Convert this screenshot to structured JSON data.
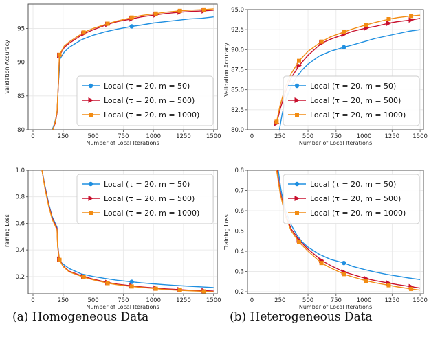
{
  "captions": {
    "a": "(a) Homogeneous Data",
    "b": "(b) Heterogeneous Data"
  },
  "colors": {
    "m50": "#1f8fe0",
    "m500": "#c8102e",
    "m1000": "#f28c13",
    "grid": "#e6e6e6",
    "legend_border": "#cccccc"
  },
  "chart_data": [
    {
      "type": "line",
      "panel": "a-top",
      "xlabel": "Number of Local Iterations",
      "ylabel": "Validation Accuracy",
      "xlim": [
        -40,
        1530
      ],
      "ylim": [
        80,
        98.6
      ],
      "xticks": [
        0,
        250,
        500,
        750,
        1000,
        1250,
        1500
      ],
      "yticks": [
        80,
        85,
        90,
        95
      ],
      "grid": true,
      "legend": "lower-right",
      "series": [
        {
          "name": "Local (τ = 20, m = 50)",
          "color_key": "m50",
          "marker": "circle",
          "x": [
            160,
            180,
            200,
            210,
            225,
            260,
            300,
            400,
            500,
            600,
            700,
            820,
            900,
            1000,
            1100,
            1200,
            1300,
            1400,
            1500
          ],
          "y": [
            80,
            81.0,
            82.5,
            86.5,
            90.5,
            91.5,
            92.2,
            93.3,
            94.0,
            94.5,
            94.9,
            95.3,
            95.5,
            95.8,
            96.0,
            96.2,
            96.4,
            96.5,
            96.7
          ],
          "markers_x": [
            820
          ]
        },
        {
          "name": "Local (τ = 20, m = 500)",
          "color_key": "m500",
          "marker": "triangle-right",
          "x": [
            165,
            185,
            200,
            212,
            220,
            260,
            300,
            420,
            500,
            620,
            700,
            820,
            900,
            1020,
            1100,
            1220,
            1300,
            1420,
            1500
          ],
          "y": [
            80,
            81.0,
            82.5,
            87.0,
            91.0,
            92.2,
            92.8,
            94.2,
            94.8,
            95.6,
            96.0,
            96.4,
            96.7,
            97.0,
            97.2,
            97.4,
            97.5,
            97.6,
            97.7
          ],
          "markers_x": [
            220,
            420,
            620,
            820,
            1020,
            1220,
            1420
          ]
        },
        {
          "name": "Local (τ = 20, m = 1000)",
          "color_key": "m1000",
          "marker": "square",
          "x": [
            165,
            185,
            200,
            212,
            220,
            260,
            300,
            420,
            500,
            620,
            700,
            820,
            900,
            1020,
            1100,
            1220,
            1300,
            1420,
            1500
          ],
          "y": [
            80,
            81.2,
            82.7,
            87.3,
            91.1,
            92.4,
            93.0,
            94.4,
            95.0,
            95.7,
            96.1,
            96.6,
            96.9,
            97.2,
            97.4,
            97.6,
            97.7,
            97.8,
            97.9
          ],
          "markers_x": [
            220,
            420,
            620,
            820,
            1020,
            1220,
            1420
          ]
        }
      ]
    },
    {
      "type": "line",
      "panel": "b-top",
      "xlabel": "Number of Local Iterations",
      "ylabel": "Validation Accuracy",
      "xlim": [
        -40,
        1530
      ],
      "ylim": [
        80,
        95
      ],
      "xticks": [
        0,
        250,
        500,
        750,
        1000,
        1250,
        1500
      ],
      "yticks": [
        80.0,
        82.5,
        85.0,
        87.5,
        90.0,
        92.5,
        95.0
      ],
      "grid": true,
      "legend": "lower-right",
      "series": [
        {
          "name": "Local (τ = 20, m = 50)",
          "color_key": "m50",
          "marker": "circle",
          "x": [
            245,
            270,
            300,
            350,
            400,
            450,
            500,
            600,
            700,
            820,
            900,
            1000,
            1100,
            1200,
            1300,
            1400,
            1500
          ],
          "y": [
            80,
            82.0,
            83.7,
            85.4,
            86.6,
            87.5,
            88.2,
            89.2,
            89.8,
            90.3,
            90.6,
            91.0,
            91.4,
            91.7,
            92.0,
            92.3,
            92.5
          ],
          "markers_x": [
            820
          ]
        },
        {
          "name": "Local (τ = 20, m = 500)",
          "color_key": "m500",
          "marker": "triangle-right",
          "x": [
            220,
            250,
            300,
            350,
            420,
            500,
            620,
            700,
            820,
            900,
            1020,
            1100,
            1220,
            1300,
            1420,
            1500
          ],
          "y": [
            80.8,
            82.5,
            84.8,
            86.5,
            88.0,
            89.3,
            90.8,
            91.3,
            91.9,
            92.3,
            92.7,
            92.9,
            93.3,
            93.5,
            93.7,
            93.9
          ],
          "markers_x": [
            220,
            420,
            620,
            820,
            1020,
            1220,
            1420
          ]
        },
        {
          "name": "Local (τ = 20, m = 1000)",
          "color_key": "m1000",
          "marker": "square",
          "x": [
            220,
            250,
            300,
            350,
            420,
            500,
            620,
            700,
            820,
            900,
            1020,
            1100,
            1220,
            1300,
            1420,
            1500
          ],
          "y": [
            81.0,
            83.0,
            85.4,
            87.0,
            88.6,
            89.8,
            91.0,
            91.6,
            92.2,
            92.6,
            93.1,
            93.4,
            93.8,
            94.0,
            94.2,
            94.3
          ],
          "markers_x": [
            220,
            420,
            620,
            820,
            1020,
            1220,
            1420
          ]
        }
      ]
    },
    {
      "type": "line",
      "panel": "a-bottom",
      "xlabel": "Number of Local Iterations",
      "ylabel": "Training Loss",
      "xlim": [
        -40,
        1530
      ],
      "ylim": [
        0.07,
        1.0
      ],
      "xticks": [
        0,
        250,
        500,
        750,
        1000,
        1250,
        1500
      ],
      "yticks": [
        0.2,
        0.4,
        0.6,
        0.8,
        1.0
      ],
      "grid": true,
      "legend": "upper-right",
      "series": [
        {
          "name": "Local (τ = 20, m = 50)",
          "color_key": "m50",
          "marker": "circle",
          "x": [
            75,
            100,
            130,
            160,
            200,
            205,
            215,
            240,
            300,
            400,
            500,
            600,
            700,
            820,
            900,
            1000,
            1100,
            1200,
            1300,
            1400,
            1500
          ],
          "y": [
            1.0,
            0.88,
            0.75,
            0.65,
            0.57,
            0.45,
            0.35,
            0.3,
            0.26,
            0.22,
            0.2,
            0.185,
            0.172,
            0.16,
            0.152,
            0.145,
            0.138,
            0.132,
            0.127,
            0.122,
            0.117
          ],
          "markers_x": [
            820
          ]
        },
        {
          "name": "Local (τ = 20, m = 500)",
          "color_key": "m500",
          "marker": "triangle-right",
          "x": [
            75,
            100,
            130,
            160,
            200,
            205,
            220,
            250,
            300,
            420,
            500,
            620,
            700,
            820,
            900,
            1020,
            1100,
            1220,
            1300,
            1420,
            1500
          ],
          "y": [
            1.0,
            0.87,
            0.74,
            0.64,
            0.56,
            0.43,
            0.33,
            0.28,
            0.24,
            0.2,
            0.18,
            0.155,
            0.143,
            0.13,
            0.122,
            0.113,
            0.107,
            0.101,
            0.097,
            0.093,
            0.09
          ],
          "markers_x": [
            220,
            420,
            620,
            820,
            1020,
            1220,
            1420
          ]
        },
        {
          "name": "Local (τ = 20, m = 1000)",
          "color_key": "m1000",
          "marker": "square",
          "x": [
            75,
            100,
            130,
            160,
            200,
            205,
            220,
            250,
            300,
            420,
            500,
            620,
            700,
            820,
            900,
            1020,
            1100,
            1220,
            1300,
            1420,
            1500
          ],
          "y": [
            1.0,
            0.86,
            0.73,
            0.63,
            0.55,
            0.42,
            0.325,
            0.275,
            0.235,
            0.195,
            0.175,
            0.15,
            0.138,
            0.125,
            0.118,
            0.108,
            0.102,
            0.096,
            0.092,
            0.088,
            0.085
          ],
          "markers_x": [
            220,
            420,
            620,
            820,
            1020,
            1220,
            1420
          ]
        }
      ]
    },
    {
      "type": "line",
      "panel": "b-bottom",
      "xlabel": "Number of Local Iterations",
      "ylabel": "Training Loss",
      "xlim": [
        -40,
        1530
      ],
      "ylim": [
        0.19,
        0.8
      ],
      "xticks": [
        0,
        250,
        500,
        750,
        1000,
        1250,
        1500
      ],
      "yticks": [
        0.2,
        0.3,
        0.4,
        0.5,
        0.6,
        0.7,
        0.8
      ],
      "grid": true,
      "legend": "upper-right",
      "series": [
        {
          "name": "Local (τ = 20, m = 50)",
          "color_key": "m50",
          "marker": "circle",
          "x": [
            235,
            260,
            300,
            350,
            400,
            450,
            500,
            600,
            700,
            820,
            900,
            1000,
            1100,
            1200,
            1300,
            1400,
            1500
          ],
          "y": [
            0.8,
            0.7,
            0.6,
            0.53,
            0.48,
            0.445,
            0.42,
            0.385,
            0.36,
            0.342,
            0.325,
            0.31,
            0.297,
            0.286,
            0.277,
            0.268,
            0.26
          ],
          "markers_x": [
            820
          ]
        },
        {
          "name": "Local (τ = 20, m = 500)",
          "color_key": "m500",
          "marker": "triangle-right",
          "x": [
            225,
            250,
            300,
            350,
            420,
            500,
            620,
            700,
            820,
            900,
            1020,
            1100,
            1220,
            1300,
            1420,
            1500
          ],
          "y": [
            0.8,
            0.7,
            0.58,
            0.51,
            0.455,
            0.41,
            0.355,
            0.33,
            0.298,
            0.285,
            0.265,
            0.255,
            0.243,
            0.235,
            0.225,
            0.218
          ],
          "markers_x": [
            420,
            620,
            820,
            1020,
            1220,
            1420
          ]
        },
        {
          "name": "Local (τ = 20, m = 1000)",
          "color_key": "m1000",
          "marker": "square",
          "x": [
            220,
            250,
            300,
            350,
            420,
            500,
            620,
            700,
            820,
            900,
            1020,
            1100,
            1220,
            1300,
            1420,
            1500
          ],
          "y": [
            0.8,
            0.69,
            0.57,
            0.5,
            0.445,
            0.4,
            0.342,
            0.318,
            0.287,
            0.273,
            0.254,
            0.244,
            0.232,
            0.224,
            0.214,
            0.208
          ],
          "markers_x": [
            420,
            620,
            820,
            1020,
            1220,
            1420
          ]
        }
      ]
    }
  ]
}
